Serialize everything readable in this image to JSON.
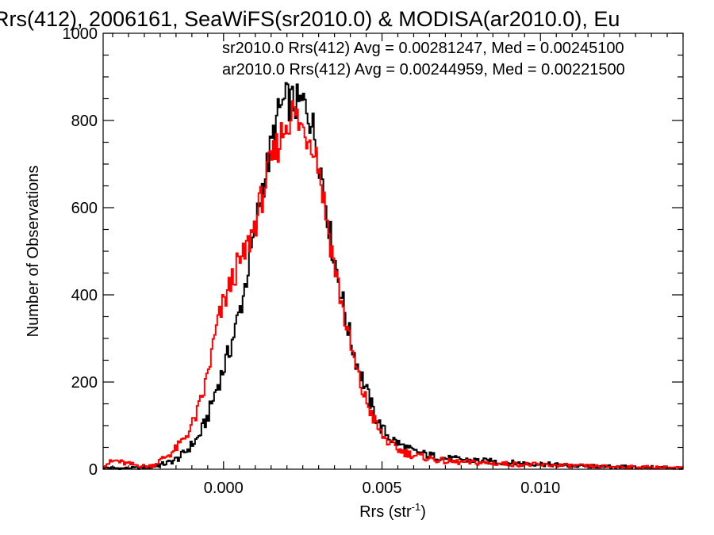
{
  "chart_data": {
    "type": "line",
    "title": "Rrs(412), 2006161, SeaWiFS(sr2010.0) & MODISA(ar2010.0), Eu",
    "xlabel_main": "Rrs (str",
    "xlabel_sup": "-1",
    "xlabel_close": ")",
    "ylabel": "Number of Observations",
    "xlim": [
      -0.0038,
      0.0145
    ],
    "ylim": [
      0,
      1000
    ],
    "x_ticks": [
      0.0,
      0.005,
      0.01
    ],
    "x_tick_labels": [
      "0.000",
      "0.005",
      "0.010"
    ],
    "y_ticks": [
      0,
      200,
      400,
      600,
      800,
      1000
    ],
    "y_tick_labels": [
      "0",
      "200",
      "400",
      "600",
      "800",
      "1000"
    ],
    "grid": false,
    "legend": "top-right",
    "series": [
      {
        "name": "sr2010.0 Rrs(412) Avg = 0.00281247, Med = 0.00245100",
        "color": "#000000",
        "x": [
          -0.0038,
          -0.0035,
          -0.0032,
          -0.0029,
          -0.0026,
          -0.0023,
          -0.002,
          -0.0017,
          -0.0014,
          -0.0011,
          -0.0008,
          -0.0005,
          -0.0002,
          0.0,
          0.0002,
          0.0004,
          0.0006,
          0.0008,
          0.001,
          0.0012,
          0.0014,
          0.0016,
          0.0018,
          0.002,
          0.0022,
          0.0024,
          0.0026,
          0.0028,
          0.003,
          0.0032,
          0.0034,
          0.0036,
          0.0038,
          0.004,
          0.0042,
          0.0044,
          0.0046,
          0.0048,
          0.005,
          0.0053,
          0.0056,
          0.006,
          0.0065,
          0.007,
          0.0075,
          0.008,
          0.009,
          0.01,
          0.011,
          0.012,
          0.013,
          0.014,
          0.0145
        ],
        "values": [
          4,
          3,
          2,
          3,
          3,
          4,
          10,
          16,
          26,
          48,
          72,
          120,
          190,
          230,
          275,
          330,
          390,
          470,
          550,
          640,
          700,
          775,
          830,
          845,
          840,
          835,
          840,
          790,
          720,
          630,
          520,
          450,
          370,
          300,
          245,
          205,
          160,
          120,
          92,
          70,
          55,
          40,
          32,
          25,
          22,
          20,
          15,
          12,
          8,
          6,
          5,
          4,
          3
        ]
      },
      {
        "name": "ar2010.0 Rrs(412) Avg = 0.00244959, Med = 0.00221500",
        "color": "#ff0000",
        "x": [
          -0.0038,
          -0.0036,
          -0.0034,
          -0.0032,
          -0.003,
          -0.0028,
          -0.0026,
          -0.0024,
          -0.0022,
          -0.002,
          -0.0018,
          -0.0016,
          -0.0014,
          -0.0012,
          -0.001,
          -0.0008,
          -0.0006,
          -0.0004,
          -0.0002,
          0.0,
          0.0002,
          0.0004,
          0.0006,
          0.0008,
          0.001,
          0.0012,
          0.0014,
          0.0016,
          0.0018,
          0.002,
          0.0022,
          0.0024,
          0.0026,
          0.0028,
          0.003,
          0.0032,
          0.0034,
          0.0036,
          0.0038,
          0.004,
          0.0042,
          0.0044,
          0.0046,
          0.0048,
          0.005,
          0.0053,
          0.0056,
          0.006,
          0.0065,
          0.007,
          0.0075,
          0.008,
          0.009,
          0.01,
          0.011,
          0.012,
          0.013,
          0.014,
          0.0145
        ],
        "values": [
          10,
          15,
          20,
          15,
          12,
          10,
          8,
          6,
          10,
          20,
          30,
          40,
          55,
          75,
          100,
          135,
          185,
          255,
          330,
          380,
          420,
          460,
          480,
          520,
          565,
          620,
          680,
          720,
          760,
          800,
          820,
          790,
          770,
          760,
          700,
          600,
          510,
          430,
          355,
          285,
          225,
          175,
          140,
          105,
          78,
          55,
          42,
          32,
          25,
          18,
          16,
          15,
          12,
          10,
          8,
          6,
          5,
          4,
          3
        ]
      }
    ]
  }
}
